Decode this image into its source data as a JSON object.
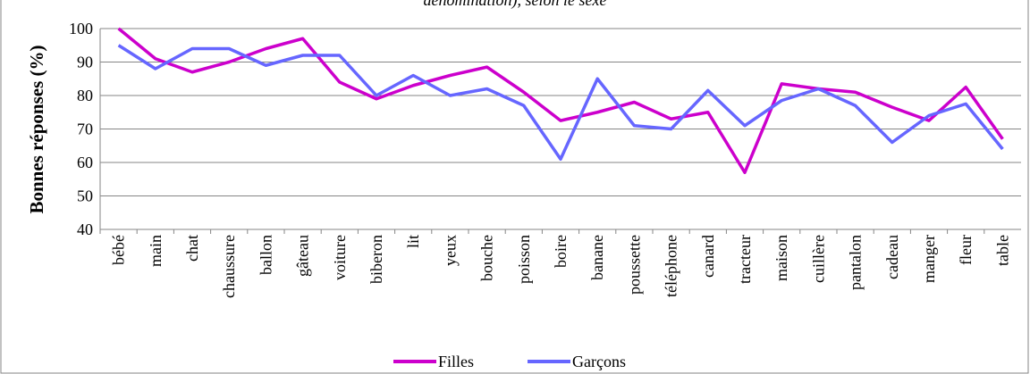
{
  "chart_data": {
    "type": "line",
    "title": "dénomination), selon le sexe",
    "y_label": "Bonnes réponses (%)",
    "categories": [
      "bébé",
      "main",
      "chat",
      "chaussure",
      "ballon",
      "gâteau",
      "voiture",
      "biberon",
      "lit",
      "yeux",
      "bouche",
      "poisson",
      "boire",
      "banane",
      "poussette",
      "téléphone",
      "canard",
      "tracteur",
      "maison",
      "cuillère",
      "pantalon",
      "cadeau",
      "manger",
      "fleur",
      "table"
    ],
    "series": [
      {
        "name": "Filles",
        "color": "#cc00cc",
        "values": [
          100,
          91,
          87,
          90,
          94,
          97,
          84,
          79,
          83,
          86,
          88.5,
          81,
          72.5,
          75,
          78,
          73,
          75,
          57,
          83.5,
          82,
          81,
          76.5,
          72.5,
          82.5,
          67
        ]
      },
      {
        "name": "Garçons",
        "color": "#6666ff",
        "values": [
          95,
          88,
          94,
          94,
          89,
          92,
          92,
          80,
          86,
          80,
          82,
          77,
          61,
          85,
          71,
          70,
          81.5,
          71,
          78.5,
          82,
          77,
          66,
          74,
          77.5,
          64
        ]
      }
    ],
    "ylim": [
      40,
      100
    ],
    "yticks": [
      40,
      50,
      60,
      70,
      80,
      90,
      100
    ],
    "grid": true,
    "legend": "bottom"
  }
}
